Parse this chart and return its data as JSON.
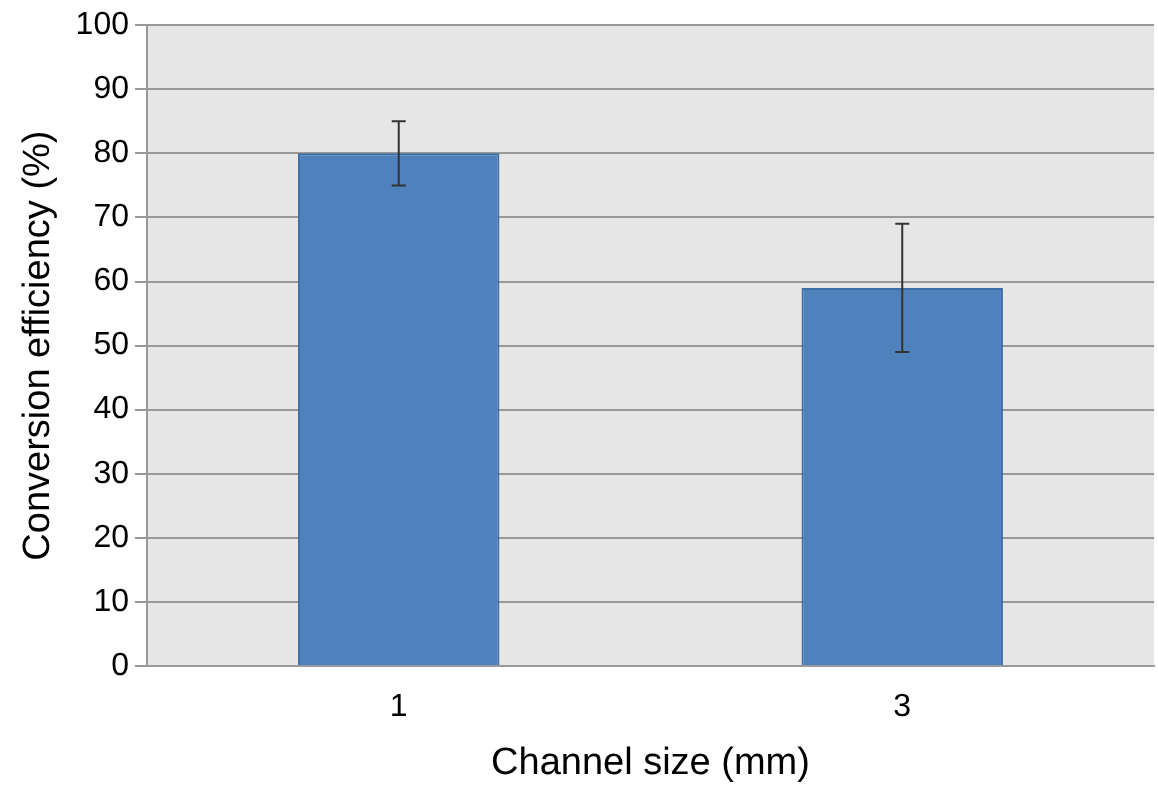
{
  "chart_data": {
    "type": "bar",
    "xlabel": "Channel size (mm)",
    "ylabel": "Conversion efficiency (%)",
    "categories": [
      "1",
      "3"
    ],
    "values": [
      80,
      59
    ],
    "errors": [
      5,
      10
    ],
    "color": "#4f81bd",
    "ylim": [
      0,
      100
    ],
    "yticks": [
      0,
      10,
      20,
      30,
      40,
      50,
      60,
      70,
      80,
      90,
      100
    ],
    "grid": "y",
    "legend": false
  }
}
